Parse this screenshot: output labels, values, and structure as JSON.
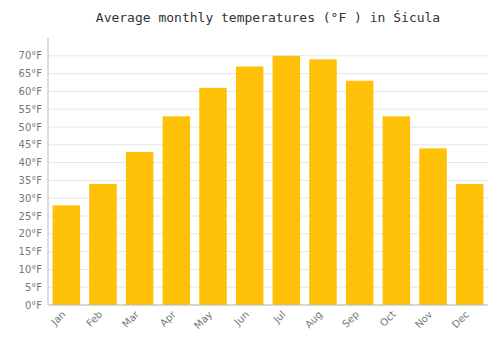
{
  "chart_data": {
    "type": "bar",
    "title": "Average monthly temperatures (°F ) in Śicula",
    "categories": [
      "Jan",
      "Feb",
      "Mar",
      "Apr",
      "May",
      "Jun",
      "Jul",
      "Aug",
      "Sep",
      "Oct",
      "Nov",
      "Dec"
    ],
    "values": [
      28,
      34,
      43,
      53,
      61,
      67,
      70,
      69,
      63,
      53,
      44,
      34
    ],
    "color": "#FFC107",
    "ylim": [
      0,
      75
    ],
    "yticks": [
      {
        "value": 0,
        "label": "0°F"
      },
      {
        "value": 5,
        "label": "5°F"
      },
      {
        "value": 10,
        "label": "10°F"
      },
      {
        "value": 15,
        "label": "15°F"
      },
      {
        "value": 20,
        "label": "20°F"
      },
      {
        "value": 25,
        "label": "25°F"
      },
      {
        "value": 30,
        "label": "30°F"
      },
      {
        "value": 35,
        "label": "35°F"
      },
      {
        "value": 40,
        "label": "40°F"
      },
      {
        "value": 45,
        "label": "45°F"
      },
      {
        "value": 50,
        "label": "50°F"
      },
      {
        "value": 55,
        "label": "55°F"
      },
      {
        "value": 60,
        "label": "60°F"
      },
      {
        "value": 65,
        "label": "65°F"
      },
      {
        "value": 70,
        "label": "70°F"
      }
    ],
    "grid": true
  }
}
